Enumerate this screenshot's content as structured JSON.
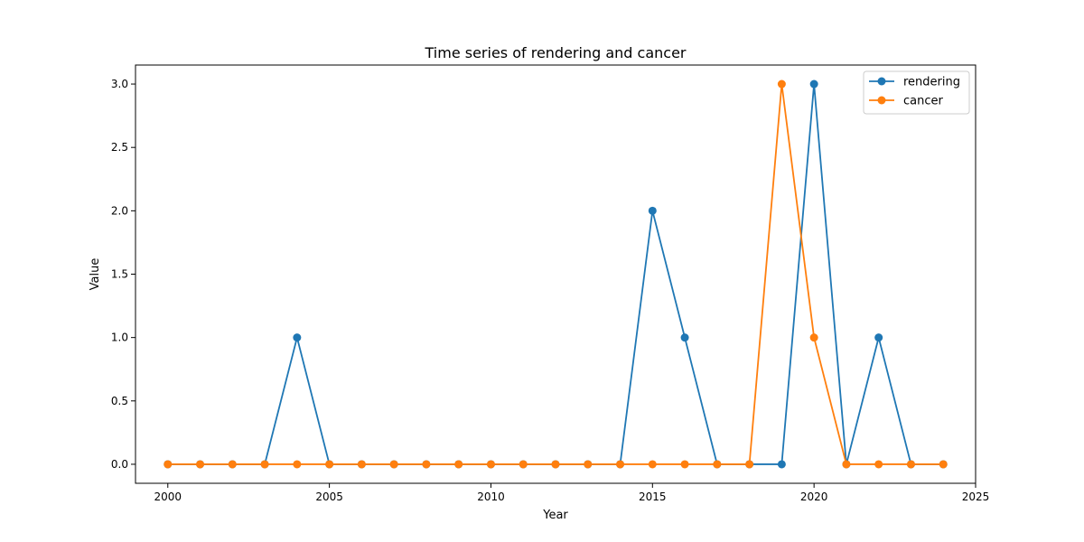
{
  "chart_data": {
    "type": "line",
    "title": "Time series of rendering and cancer",
    "xlabel": "Year",
    "ylabel": "Value",
    "xlim": [
      1999,
      2025
    ],
    "ylim": [
      -0.15,
      3.15
    ],
    "x_ticks": [
      2000,
      2005,
      2010,
      2015,
      2020,
      2025
    ],
    "y_ticks": [
      0.0,
      0.5,
      1.0,
      1.5,
      2.0,
      2.5,
      3.0
    ],
    "y_tick_labels": [
      "0.0",
      "0.5",
      "1.0",
      "1.5",
      "2.0",
      "2.5",
      "3.0"
    ],
    "x": [
      2000,
      2001,
      2002,
      2003,
      2004,
      2005,
      2006,
      2007,
      2008,
      2009,
      2010,
      2011,
      2012,
      2013,
      2014,
      2015,
      2016,
      2017,
      2018,
      2019,
      2020,
      2021,
      2022,
      2023,
      2024
    ],
    "series": [
      {
        "name": "rendering",
        "color": "#1f77b4",
        "values": [
          0,
          0,
          0,
          0,
          1,
          0,
          0,
          0,
          0,
          0,
          0,
          0,
          0,
          0,
          0,
          2,
          1,
          0,
          0,
          0,
          3,
          0,
          1,
          0,
          0
        ]
      },
      {
        "name": "cancer",
        "color": "#ff7f0e",
        "values": [
          0,
          0,
          0,
          0,
          0,
          0,
          0,
          0,
          0,
          0,
          0,
          0,
          0,
          0,
          0,
          0,
          0,
          0,
          0,
          3,
          1,
          0,
          0,
          0,
          0
        ]
      }
    ],
    "grid": false,
    "legend_position": "top-right"
  }
}
